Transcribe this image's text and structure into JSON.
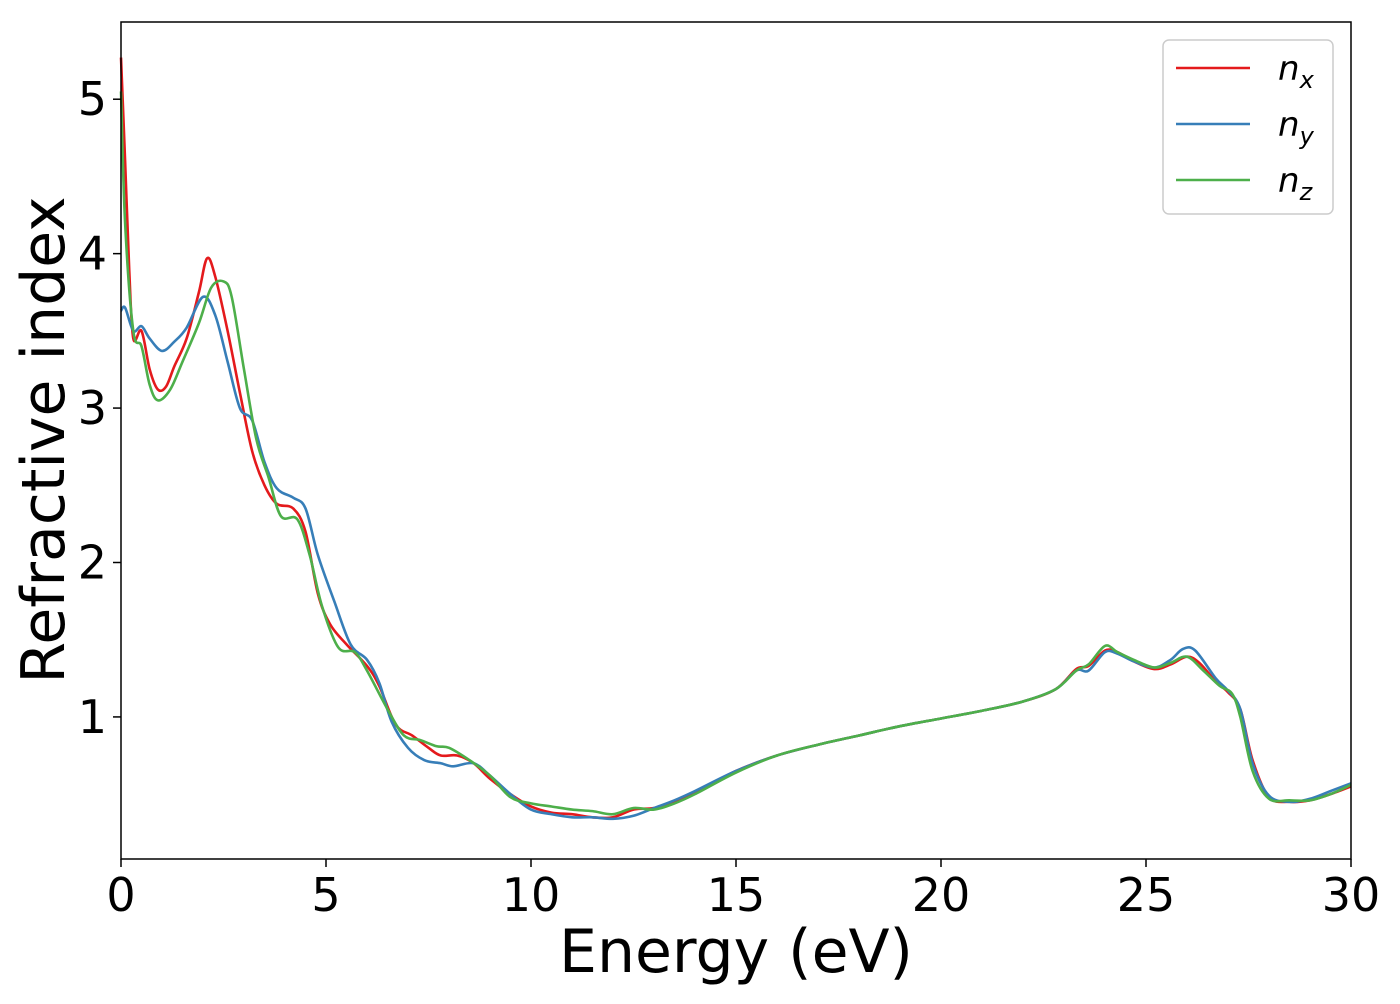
{
  "chart_data": {
    "type": "line",
    "xlabel": "Energy (eV)",
    "ylabel": "Refractive index",
    "xlim": [
      0,
      30
    ],
    "ylim": [
      0.08,
      5.5
    ],
    "xticks": [
      0,
      5,
      10,
      15,
      20,
      25,
      30
    ],
    "yticks": [
      1,
      2,
      3,
      4,
      5
    ],
    "grid": false,
    "legend_position": "top-right",
    "series": [
      {
        "name": "n_x",
        "label_main": "n",
        "label_sub": "x",
        "color": "#e41a1c",
        "points": [
          [
            0,
            5.27
          ],
          [
            0.1,
            4.6
          ],
          [
            0.2,
            3.9
          ],
          [
            0.3,
            3.45
          ],
          [
            0.5,
            3.5
          ],
          [
            0.7,
            3.25
          ],
          [
            0.9,
            3.12
          ],
          [
            1.1,
            3.14
          ],
          [
            1.3,
            3.27
          ],
          [
            1.6,
            3.45
          ],
          [
            1.9,
            3.75
          ],
          [
            2.1,
            3.97
          ],
          [
            2.3,
            3.85
          ],
          [
            2.6,
            3.5
          ],
          [
            2.9,
            3.1
          ],
          [
            3.2,
            2.72
          ],
          [
            3.5,
            2.5
          ],
          [
            3.8,
            2.38
          ],
          [
            4.2,
            2.35
          ],
          [
            4.5,
            2.2
          ],
          [
            4.8,
            1.8
          ],
          [
            5.1,
            1.6
          ],
          [
            5.5,
            1.47
          ],
          [
            6.0,
            1.33
          ],
          [
            6.3,
            1.2
          ],
          [
            6.7,
            0.95
          ],
          [
            7.1,
            0.88
          ],
          [
            7.5,
            0.8
          ],
          [
            7.8,
            0.75
          ],
          [
            8.2,
            0.75
          ],
          [
            8.6,
            0.7
          ],
          [
            9.0,
            0.6
          ],
          [
            9.5,
            0.5
          ],
          [
            10.0,
            0.42
          ],
          [
            10.5,
            0.38
          ],
          [
            11.0,
            0.37
          ],
          [
            11.5,
            0.35
          ],
          [
            12.0,
            0.35
          ],
          [
            12.5,
            0.4
          ],
          [
            13.0,
            0.41
          ],
          [
            13.5,
            0.45
          ],
          [
            14.0,
            0.51
          ],
          [
            15.0,
            0.65
          ],
          [
            16.0,
            0.75
          ],
          [
            17.0,
            0.82
          ],
          [
            18.0,
            0.88
          ],
          [
            19.0,
            0.94
          ],
          [
            20.0,
            0.99
          ],
          [
            21.0,
            1.04
          ],
          [
            22.0,
            1.1
          ],
          [
            22.8,
            1.18
          ],
          [
            23.3,
            1.31
          ],
          [
            23.6,
            1.33
          ],
          [
            24.0,
            1.43
          ],
          [
            24.3,
            1.42
          ],
          [
            24.7,
            1.36
          ],
          [
            25.2,
            1.31
          ],
          [
            25.6,
            1.34
          ],
          [
            26.0,
            1.39
          ],
          [
            26.3,
            1.35
          ],
          [
            26.7,
            1.23
          ],
          [
            27.0,
            1.16
          ],
          [
            27.3,
            1.05
          ],
          [
            27.6,
            0.72
          ],
          [
            28.0,
            0.48
          ],
          [
            28.5,
            0.45
          ],
          [
            29.0,
            0.46
          ],
          [
            29.5,
            0.5
          ],
          [
            30.0,
            0.55
          ]
        ]
      },
      {
        "name": "n_y",
        "label_main": "n",
        "label_sub": "y",
        "color": "#377eb8",
        "points": [
          [
            0,
            3.63
          ],
          [
            0.1,
            3.65
          ],
          [
            0.3,
            3.5
          ],
          [
            0.5,
            3.53
          ],
          [
            0.7,
            3.45
          ],
          [
            1.0,
            3.37
          ],
          [
            1.3,
            3.43
          ],
          [
            1.6,
            3.52
          ],
          [
            2.0,
            3.72
          ],
          [
            2.3,
            3.6
          ],
          [
            2.6,
            3.3
          ],
          [
            2.9,
            3.0
          ],
          [
            3.2,
            2.92
          ],
          [
            3.5,
            2.65
          ],
          [
            3.8,
            2.48
          ],
          [
            4.2,
            2.42
          ],
          [
            4.5,
            2.35
          ],
          [
            4.8,
            2.05
          ],
          [
            5.2,
            1.75
          ],
          [
            5.6,
            1.47
          ],
          [
            6.0,
            1.37
          ],
          [
            6.3,
            1.22
          ],
          [
            6.6,
            0.97
          ],
          [
            7.0,
            0.8
          ],
          [
            7.4,
            0.72
          ],
          [
            7.8,
            0.7
          ],
          [
            8.1,
            0.68
          ],
          [
            8.6,
            0.7
          ],
          [
            9.0,
            0.62
          ],
          [
            9.5,
            0.5
          ],
          [
            10.0,
            0.4
          ],
          [
            10.5,
            0.37
          ],
          [
            11.0,
            0.35
          ],
          [
            11.5,
            0.35
          ],
          [
            12.0,
            0.34
          ],
          [
            12.5,
            0.36
          ],
          [
            13.0,
            0.41
          ],
          [
            13.5,
            0.46
          ],
          [
            14.0,
            0.52
          ],
          [
            15.0,
            0.65
          ],
          [
            16.0,
            0.75
          ],
          [
            17.0,
            0.82
          ],
          [
            18.0,
            0.88
          ],
          [
            19.0,
            0.94
          ],
          [
            20.0,
            0.99
          ],
          [
            21.0,
            1.04
          ],
          [
            22.0,
            1.1
          ],
          [
            22.8,
            1.18
          ],
          [
            23.3,
            1.3
          ],
          [
            23.6,
            1.3
          ],
          [
            24.0,
            1.42
          ],
          [
            24.3,
            1.41
          ],
          [
            24.7,
            1.36
          ],
          [
            25.2,
            1.32
          ],
          [
            25.6,
            1.37
          ],
          [
            25.9,
            1.44
          ],
          [
            26.2,
            1.43
          ],
          [
            26.7,
            1.25
          ],
          [
            27.0,
            1.17
          ],
          [
            27.3,
            1.05
          ],
          [
            27.6,
            0.7
          ],
          [
            28.0,
            0.49
          ],
          [
            28.5,
            0.45
          ],
          [
            29.0,
            0.47
          ],
          [
            29.5,
            0.52
          ],
          [
            30.0,
            0.57
          ]
        ]
      },
      {
        "name": "n_z",
        "label_main": "n",
        "label_sub": "z",
        "color": "#4daf4a",
        "points": [
          [
            0,
            5.05
          ],
          [
            0.1,
            4.2
          ],
          [
            0.3,
            3.5
          ],
          [
            0.5,
            3.4
          ],
          [
            0.7,
            3.15
          ],
          [
            0.9,
            3.05
          ],
          [
            1.2,
            3.12
          ],
          [
            1.5,
            3.3
          ],
          [
            1.9,
            3.55
          ],
          [
            2.2,
            3.78
          ],
          [
            2.5,
            3.82
          ],
          [
            2.7,
            3.72
          ],
          [
            3.0,
            3.25
          ],
          [
            3.3,
            2.8
          ],
          [
            3.6,
            2.55
          ],
          [
            3.9,
            2.3
          ],
          [
            4.3,
            2.28
          ],
          [
            4.6,
            2.05
          ],
          [
            4.9,
            1.72
          ],
          [
            5.3,
            1.45
          ],
          [
            5.7,
            1.42
          ],
          [
            6.0,
            1.3
          ],
          [
            6.5,
            1.05
          ],
          [
            6.9,
            0.88
          ],
          [
            7.3,
            0.85
          ],
          [
            7.7,
            0.81
          ],
          [
            8.0,
            0.8
          ],
          [
            8.5,
            0.72
          ],
          [
            9.0,
            0.62
          ],
          [
            9.5,
            0.48
          ],
          [
            10.0,
            0.44
          ],
          [
            10.5,
            0.42
          ],
          [
            11.0,
            0.4
          ],
          [
            11.5,
            0.39
          ],
          [
            12.0,
            0.37
          ],
          [
            12.5,
            0.41
          ],
          [
            13.0,
            0.4
          ],
          [
            13.5,
            0.44
          ],
          [
            14.0,
            0.5
          ],
          [
            15.0,
            0.64
          ],
          [
            16.0,
            0.75
          ],
          [
            17.0,
            0.82
          ],
          [
            18.0,
            0.88
          ],
          [
            19.0,
            0.94
          ],
          [
            20.0,
            0.99
          ],
          [
            21.0,
            1.04
          ],
          [
            22.0,
            1.1
          ],
          [
            22.8,
            1.18
          ],
          [
            23.3,
            1.3
          ],
          [
            23.6,
            1.34
          ],
          [
            24.0,
            1.46
          ],
          [
            24.3,
            1.42
          ],
          [
            24.7,
            1.37
          ],
          [
            25.2,
            1.32
          ],
          [
            25.6,
            1.35
          ],
          [
            26.0,
            1.39
          ],
          [
            26.4,
            1.3
          ],
          [
            26.8,
            1.2
          ],
          [
            27.1,
            1.15
          ],
          [
            27.3,
            1.0
          ],
          [
            27.6,
            0.65
          ],
          [
            28.0,
            0.47
          ],
          [
            28.5,
            0.46
          ],
          [
            29.0,
            0.46
          ],
          [
            29.5,
            0.5
          ],
          [
            30.0,
            0.56
          ]
        ]
      }
    ]
  }
}
